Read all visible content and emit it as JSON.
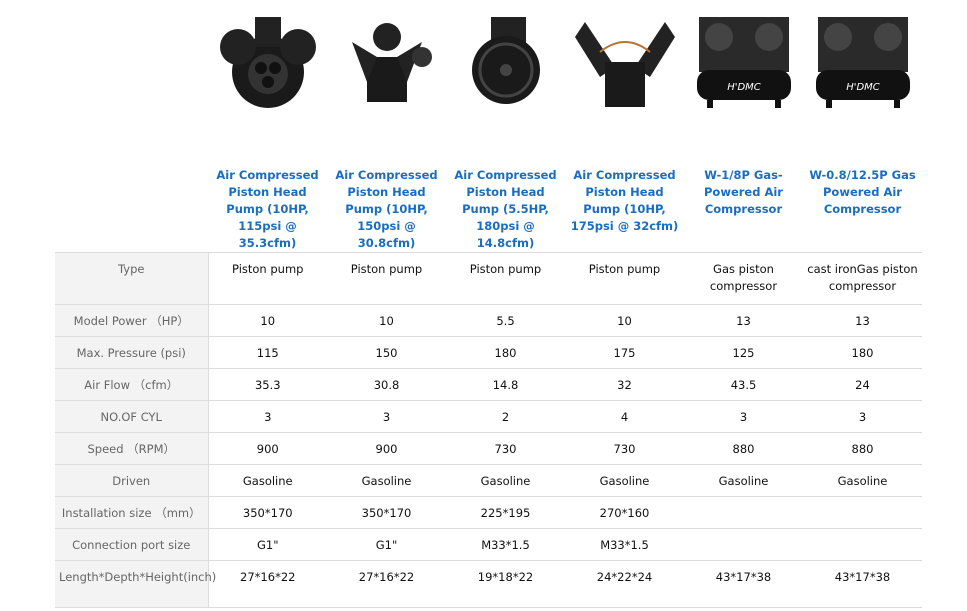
{
  "products": [
    {
      "title": "Air Compressed Piston Head Pump (10HP, 115psi @ 35.3cfm)",
      "image": "three-cylinder-pump-head"
    },
    {
      "title": "Air Compressed Piston Head Pump (10HP, 150psi @ 30.8cfm)",
      "image": "two-cylinder-pump-head"
    },
    {
      "title": "Air Compressed Piston Head Pump (5.5HP, 180psi @ 14.8cfm)",
      "image": "flywheel-pump-head"
    },
    {
      "title": "Air Compressed Piston Head Pump (10HP, 175psi @ 32cfm)",
      "image": "v4-pump-head"
    },
    {
      "title": "W-1/8P Gas-Powered Air Compressor",
      "image": "gas-compressor-tank"
    },
    {
      "title": "W-0.8/12.5P Gas Powered Air Compressor",
      "image": "gas-compressor-tank"
    }
  ],
  "rows": [
    {
      "label": "Type",
      "values": [
        "Piston pump",
        "Piston pump",
        "Piston pump",
        "Piston pump",
        "Gas piston compressor",
        "cast ironGas piston compressor"
      ]
    },
    {
      "label": "Model Power （HP）",
      "values": [
        "10",
        "10",
        "5.5",
        "10",
        "13",
        "13"
      ]
    },
    {
      "label": "Max. Pressure (psi)",
      "values": [
        "115",
        "150",
        "180",
        "175",
        "125",
        "180"
      ]
    },
    {
      "label": "Air Flow （cfm）",
      "values": [
        "35.3",
        "30.8",
        "14.8",
        "32",
        "43.5",
        "24"
      ]
    },
    {
      "label": "NO.OF CYL",
      "values": [
        "3",
        "3",
        "2",
        "4",
        "3",
        "3"
      ]
    },
    {
      "label": "Speed （RPM）",
      "values": [
        "900",
        "900",
        "730",
        "730",
        "880",
        "880"
      ]
    },
    {
      "label": "Driven",
      "values": [
        "Gasoline",
        "Gasoline",
        "Gasoline",
        "Gasoline",
        "Gasoline",
        "Gasoline"
      ]
    },
    {
      "label": "Installation size （mm）",
      "values": [
        "350*170",
        "350*170",
        "225*195",
        "270*160",
        "",
        ""
      ]
    },
    {
      "label": "Connection port size",
      "values": [
        "G1\"",
        "G1\"",
        "M33*1.5",
        "M33*1.5",
        "",
        ""
      ]
    },
    {
      "label": "Length*Depth*Height(inch)",
      "values": [
        "27*16*22",
        "27*16*22",
        "19*18*22",
        "24*22*24",
        "43*17*38",
        "43*17*38"
      ]
    }
  ],
  "brand_logo": "H'DMC"
}
